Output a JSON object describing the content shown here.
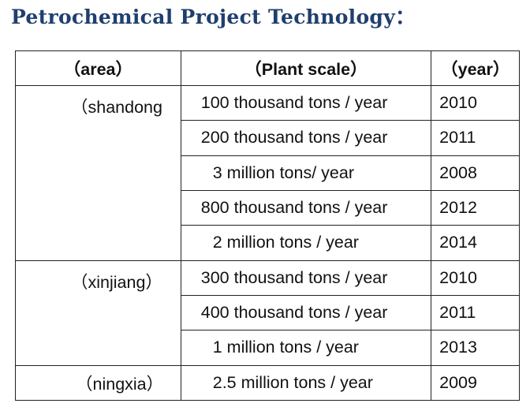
{
  "title": "Petrochemical  Project  Technology：",
  "table": {
    "headers": [
      "（area）",
      "（Plant scale）",
      "（year）"
    ],
    "groups": [
      {
        "area": "（shandong",
        "rows": [
          {
            "scale": "100 thousand tons / year",
            "year": "2010"
          },
          {
            "scale": "200 thousand tons / year",
            "year": "2011"
          },
          {
            "scale": "3 million  tons/ year",
            "year": "2008"
          },
          {
            "scale": "800 thousand tons / year",
            "year": "2012"
          },
          {
            "scale": "2 million tons / year",
            "year": "2014"
          }
        ]
      },
      {
        "area": "（xinjiang）",
        "rows": [
          {
            "scale": "300 thousand tons / year",
            "year": "2010"
          },
          {
            "scale": "400 thousand tons / year",
            "year": "2011"
          },
          {
            "scale": "1 million tons / year",
            "year": "2013"
          }
        ]
      },
      {
        "area": "（ningxia）",
        "rows": [
          {
            "scale": "2.5 million tons / year",
            "year": "2009"
          }
        ]
      }
    ]
  }
}
